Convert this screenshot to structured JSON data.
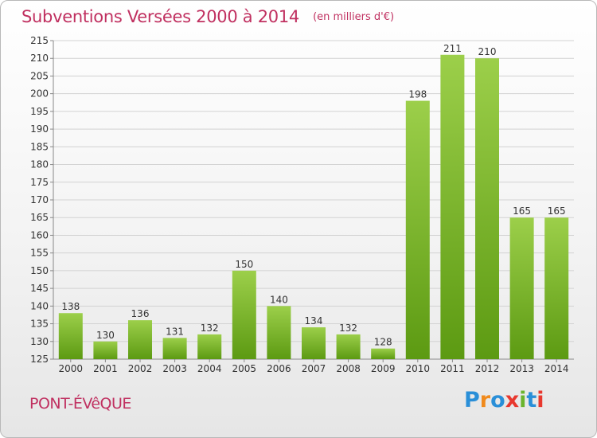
{
  "header": {
    "title": "Subventions Versées 2000 à 2014",
    "subtitle": "(en milliers d'€)"
  },
  "footer": {
    "commune": "PONT-ÉVêQUE",
    "logo_text": "Proxiti",
    "logo_colors": [
      "#2a8fd8",
      "#f08a1c",
      "#2a8fd8",
      "#e8382e",
      "#6ab42d",
      "#2a8fd8",
      "#e8382e"
    ]
  },
  "chart_data": {
    "type": "bar",
    "categories": [
      "2000",
      "2001",
      "2002",
      "2003",
      "2004",
      "2005",
      "2006",
      "2007",
      "2008",
      "2009",
      "2010",
      "2011",
      "2012",
      "2013",
      "2014"
    ],
    "values": [
      138,
      130,
      136,
      131,
      132,
      150,
      140,
      134,
      132,
      128,
      198,
      211,
      210,
      165,
      165
    ],
    "ylim": [
      125,
      215
    ],
    "yticks": [
      125,
      130,
      135,
      140,
      145,
      150,
      155,
      160,
      165,
      170,
      175,
      180,
      185,
      190,
      195,
      200,
      205,
      210,
      215
    ],
    "grid": "horizontal",
    "bar_color_light": "#9ccf4a",
    "bar_color_dark": "#5c9a12",
    "text_color": "#333333"
  }
}
